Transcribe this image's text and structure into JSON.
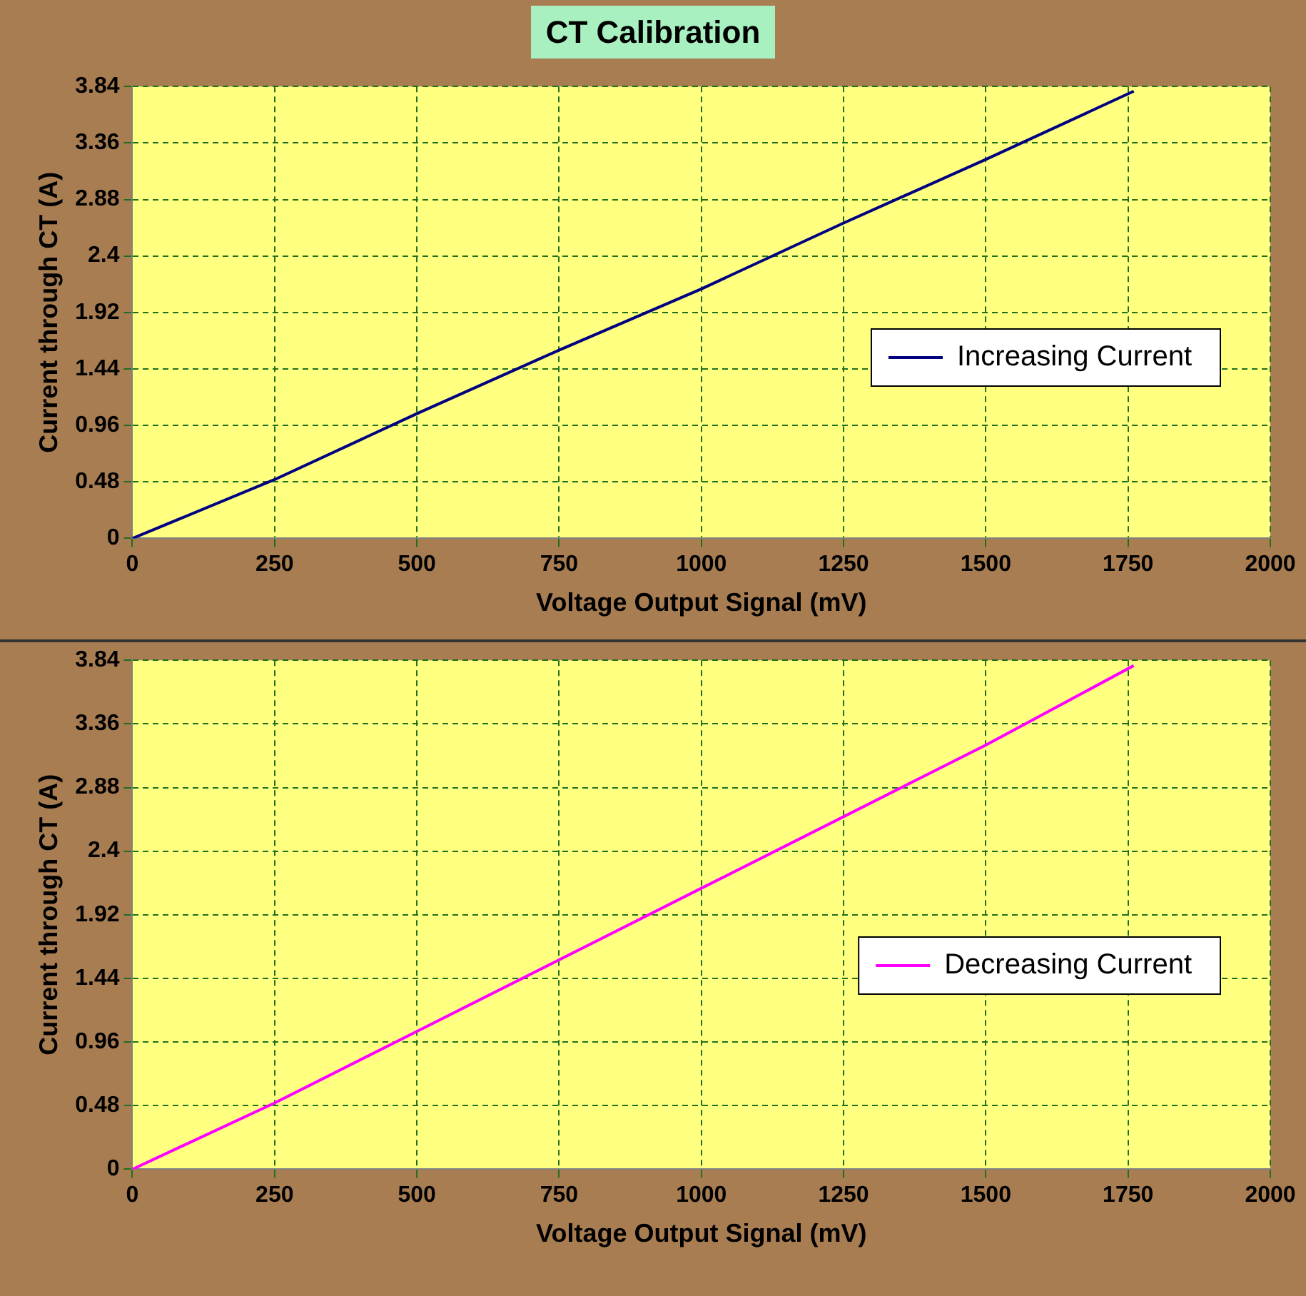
{
  "chart_data": [
    {
      "type": "line",
      "title": "CT Calibration",
      "xlabel": "Voltage Output Signal (mV)",
      "ylabel": "Current through CT (A)",
      "x": [
        0,
        250,
        500,
        750,
        1000,
        1250,
        1500,
        1760
      ],
      "series": [
        {
          "name": "Increasing Current",
          "color": "#000080",
          "values": [
            0,
            0.5,
            1.06,
            1.6,
            2.12,
            2.68,
            3.22,
            3.8
          ]
        }
      ],
      "xlim": [
        0,
        2000
      ],
      "xticks": [
        0,
        250,
        500,
        750,
        1000,
        1250,
        1500,
        1750,
        2000
      ],
      "ylim": [
        0,
        3.84
      ],
      "yticks": [
        0,
        0.48,
        0.96,
        1.44,
        1.92,
        2.4,
        2.88,
        3.36,
        3.84
      ],
      "grid": true,
      "legend": "right",
      "marker": "none",
      "line_style": "solid"
    },
    {
      "type": "line",
      "xlabel": "Voltage Output Signal (mV)",
      "ylabel": "Current through CT (A)",
      "x": [
        0,
        250,
        500,
        750,
        1000,
        1250,
        1500,
        1760
      ],
      "series": [
        {
          "name": "Decreasing Current",
          "color": "#ff00ff",
          "values": [
            0,
            0.5,
            1.04,
            1.58,
            2.12,
            2.66,
            3.2,
            3.8
          ]
        }
      ],
      "xlim": [
        0,
        2000
      ],
      "xticks": [
        0,
        250,
        500,
        750,
        1000,
        1250,
        1500,
        1750,
        2000
      ],
      "ylim": [
        0,
        3.84
      ],
      "yticks": [
        0,
        0.48,
        0.96,
        1.44,
        1.92,
        2.4,
        2.88,
        3.36,
        3.84
      ],
      "grid": true,
      "legend": "right",
      "marker": "none",
      "line_style": "solid"
    }
  ]
}
